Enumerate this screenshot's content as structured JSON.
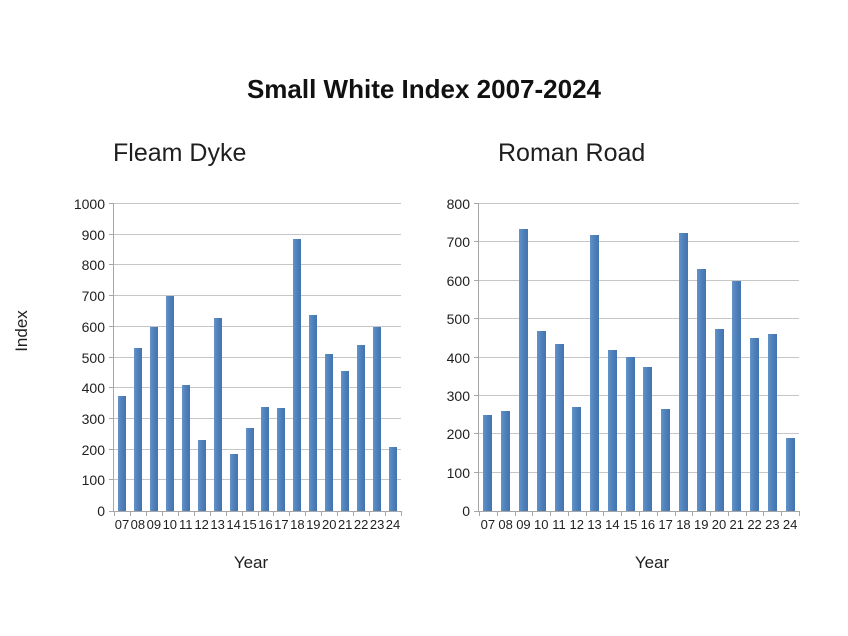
{
  "page_title": "Small White Index 2007-2024",
  "colors": {
    "bar": "#4F81BD",
    "gridline": "#C6C6C6",
    "axis": "#A6A6A6",
    "text": "#1F1F1F"
  },
  "chart_data": [
    {
      "type": "bar",
      "title": "Fleam Dyke",
      "xlabel": "Year",
      "ylabel": "Index",
      "categories": [
        "07",
        "08",
        "09",
        "10",
        "11",
        "12",
        "13",
        "14",
        "15",
        "16",
        "17",
        "18",
        "19",
        "20",
        "21",
        "22",
        "23",
        "24"
      ],
      "values": [
        375,
        530,
        600,
        700,
        410,
        230,
        630,
        185,
        270,
        340,
        335,
        885,
        640,
        510,
        455,
        540,
        600,
        210
      ],
      "ylim": [
        0,
        1000
      ],
      "ytick_step": 100,
      "grid": true,
      "legend": "none",
      "bar_color": "#4F81BD"
    },
    {
      "type": "bar",
      "title": "Roman Road",
      "xlabel": "Year",
      "ylabel": "",
      "categories": [
        "07",
        "08",
        "09",
        "10",
        "11",
        "12",
        "13",
        "14",
        "15",
        "16",
        "17",
        "18",
        "19",
        "20",
        "21",
        "22",
        "23",
        "24"
      ],
      "values": [
        250,
        260,
        735,
        470,
        435,
        270,
        720,
        420,
        400,
        375,
        265,
        725,
        630,
        475,
        600,
        450,
        460,
        190
      ],
      "ylim": [
        0,
        800
      ],
      "ytick_step": 100,
      "grid": true,
      "legend": "none",
      "bar_color": "#4F81BD"
    }
  ]
}
